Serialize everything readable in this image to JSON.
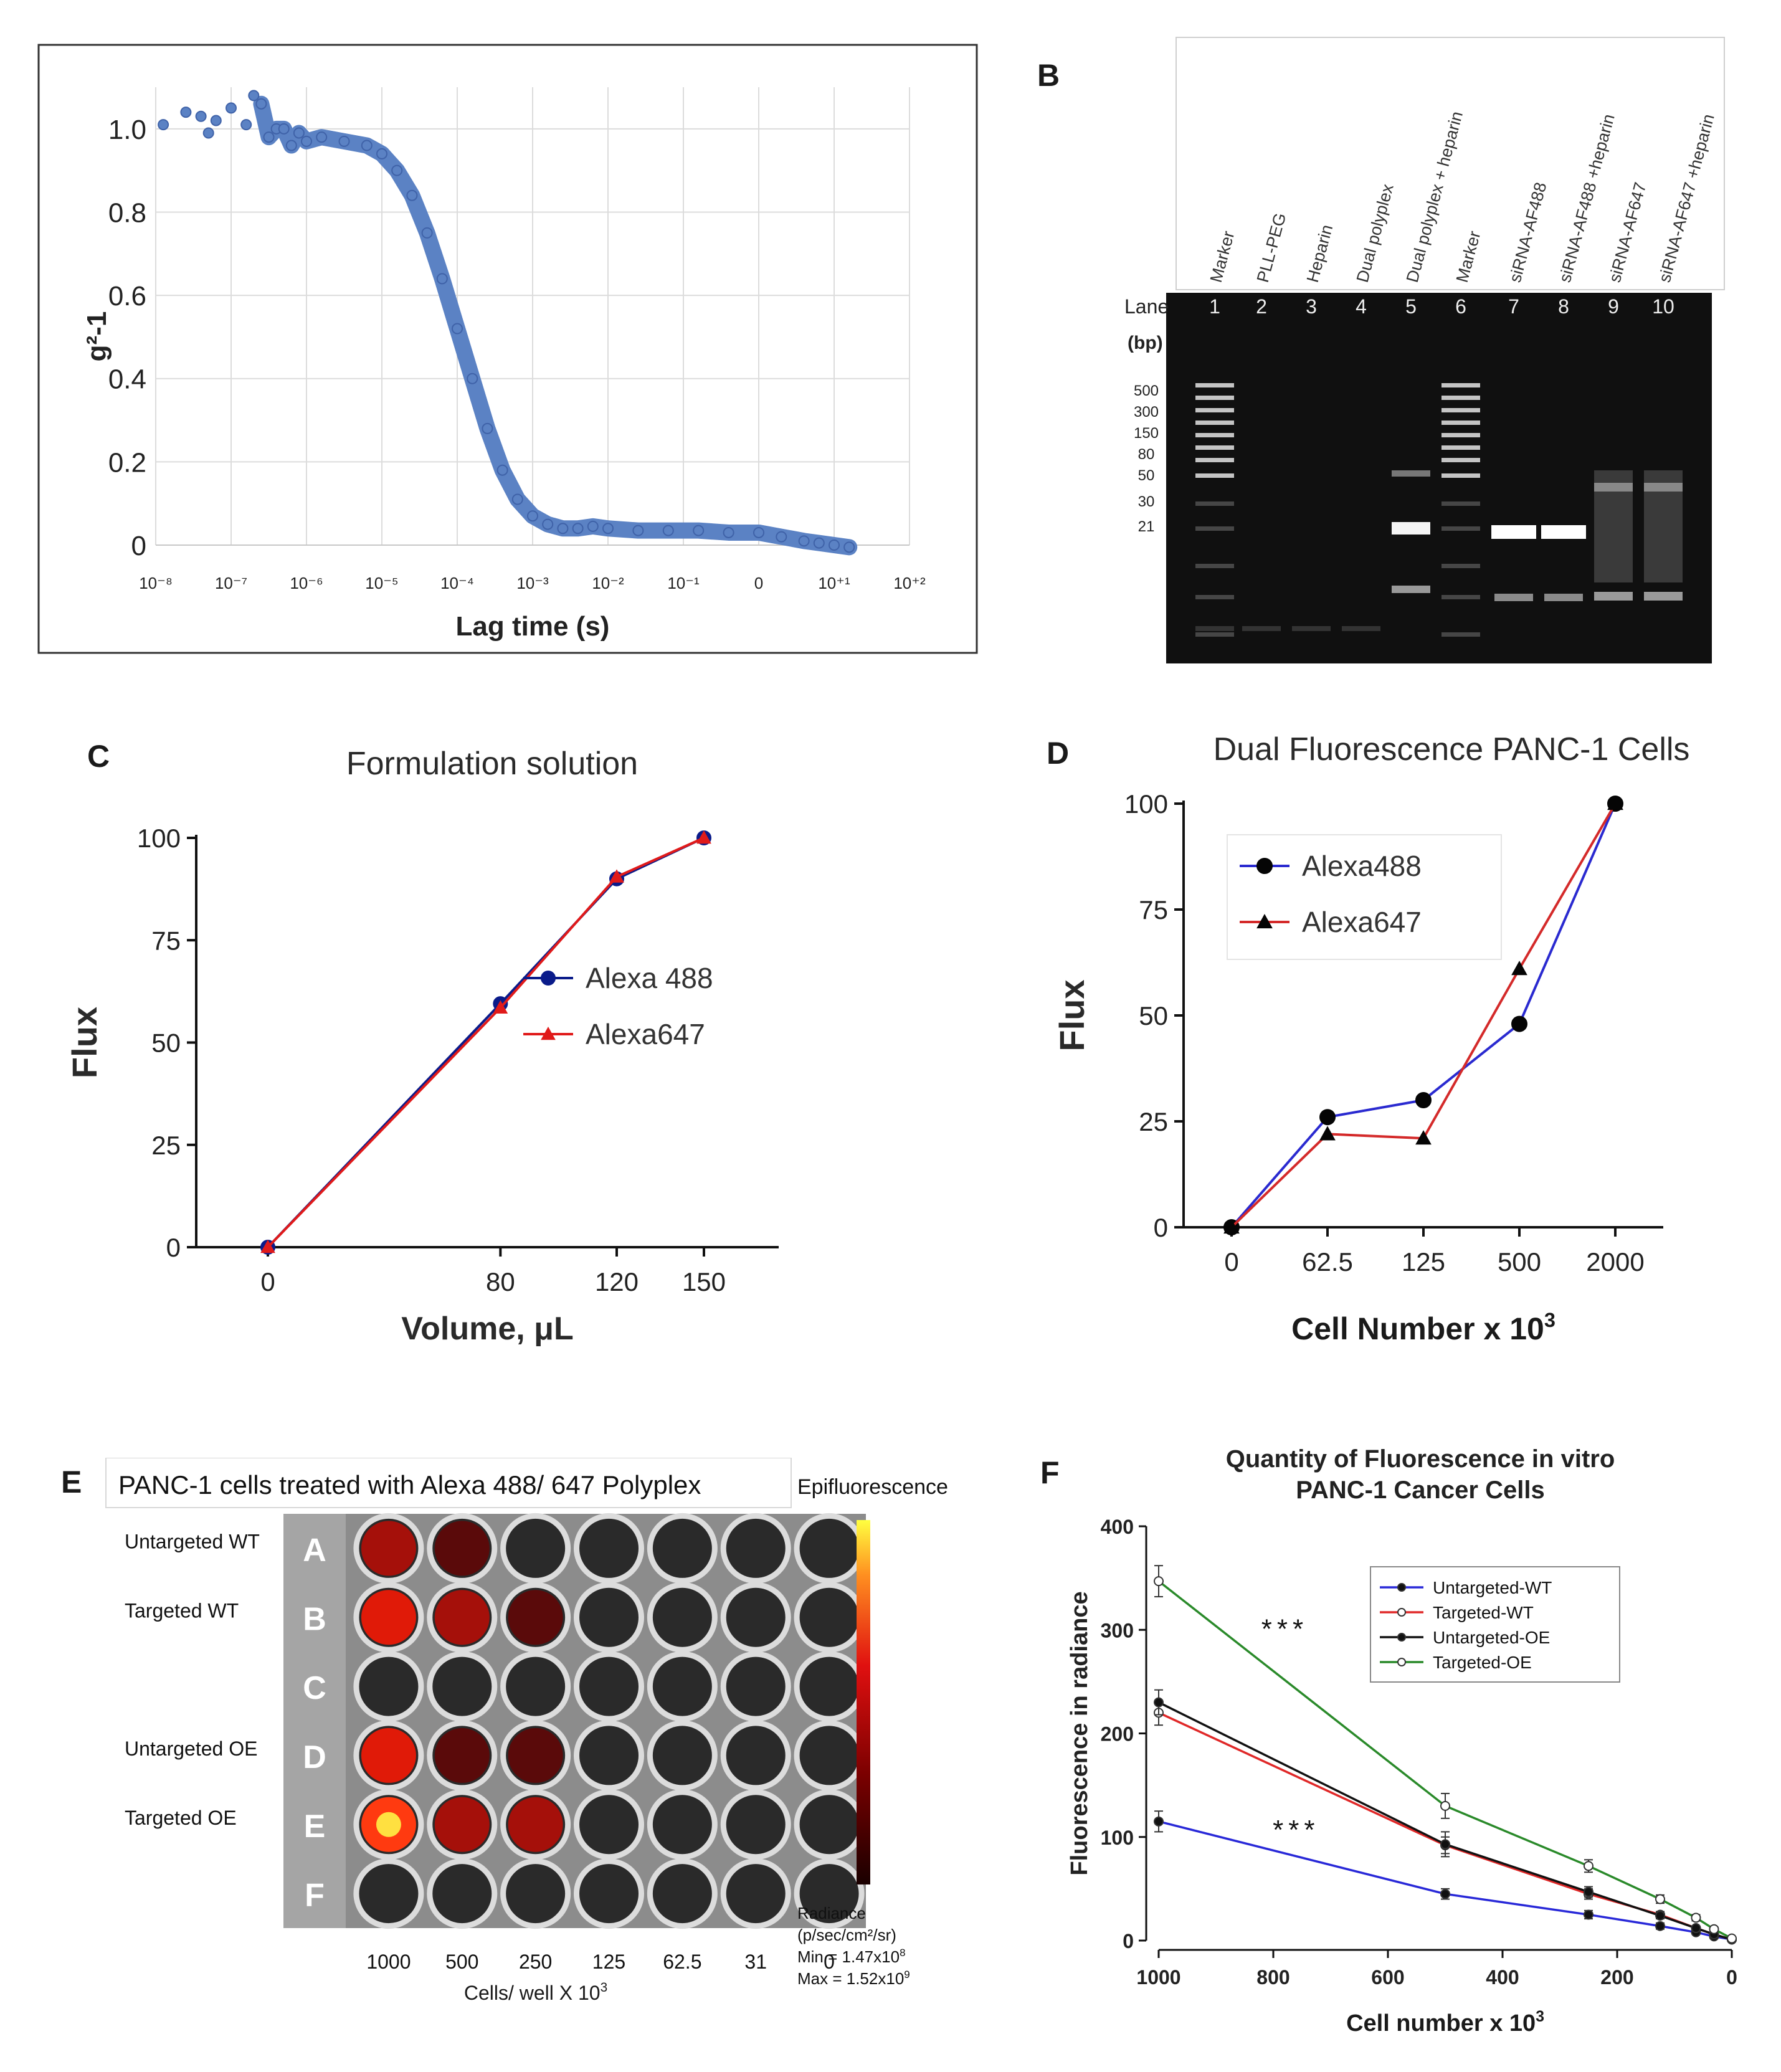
{
  "panels": {
    "A": {
      "letter": "A"
    },
    "B": {
      "letter": "B"
    },
    "C": {
      "letter": "C"
    },
    "D": {
      "letter": "D"
    },
    "E": {
      "letter": "E"
    },
    "F": {
      "letter": "F"
    }
  },
  "chart_data": [
    {
      "id": "A",
      "type": "scatter",
      "title": "",
      "xlabel": "Lag time (s)",
      "ylabel": "g²-1",
      "xscale": "log",
      "xlim_log10": [
        -8,
        2
      ],
      "ylim": [
        0,
        1.1
      ],
      "x_tick_labels": [
        "10⁻⁸",
        "10⁻⁷",
        "10⁻⁶",
        "10⁻⁵",
        "10⁻⁴",
        "10⁻³",
        "10⁻²",
        "10⁻¹",
        "0",
        "10⁺¹",
        "10⁺²"
      ],
      "y_ticks": [
        0,
        0.2,
        0.4,
        0.6,
        0.8,
        1.0
      ],
      "y_tick_labels": [
        "0",
        "0.2",
        "0.4",
        "0.6",
        "0.8",
        "1.0"
      ],
      "series": [
        {
          "name": "correlation",
          "color": "#5b82c4",
          "x_log10": [
            -7.9,
            -7.6,
            -7.4,
            -7.3,
            -7.2,
            -7.0,
            -6.8,
            -6.7,
            -6.6,
            -6.5,
            -6.4,
            -6.3,
            -6.2,
            -6.1,
            -6.0,
            -5.8,
            -5.5,
            -5.2,
            -5.0,
            -4.8,
            -4.6,
            -4.4,
            -4.2,
            -4.0,
            -3.8,
            -3.6,
            -3.4,
            -3.2,
            -3.0,
            -2.8,
            -2.6,
            -2.4,
            -2.2,
            -2.0,
            -1.6,
            -1.2,
            -0.8,
            -0.4,
            0.0,
            0.3,
            0.6,
            0.8,
            1.0,
            1.2
          ],
          "y": [
            1.01,
            1.04,
            1.03,
            0.99,
            1.02,
            1.05,
            1.01,
            1.08,
            1.06,
            0.98,
            1.0,
            1.0,
            0.96,
            0.99,
            0.97,
            0.98,
            0.97,
            0.96,
            0.94,
            0.9,
            0.84,
            0.75,
            0.64,
            0.52,
            0.4,
            0.28,
            0.18,
            0.11,
            0.07,
            0.05,
            0.04,
            0.04,
            0.045,
            0.04,
            0.035,
            0.035,
            0.035,
            0.03,
            0.03,
            0.02,
            0.01,
            0.005,
            0.0,
            -0.005
          ]
        }
      ]
    },
    {
      "id": "C",
      "type": "line",
      "title": "Formulation solution",
      "xlabel": "Volume, μL",
      "ylabel": "Flux",
      "categories": [
        "0",
        "80",
        "120",
        "150"
      ],
      "ylim": [
        0,
        100
      ],
      "y_ticks": [
        0,
        25,
        50,
        75,
        100
      ],
      "legend": "center-right",
      "series": [
        {
          "name": "Alexa 488",
          "color": "#0a1b8a",
          "marker": "circle",
          "values": [
            0,
            59.5,
            90,
            100
          ]
        },
        {
          "name": "Alexa647",
          "color": "#e01a1a",
          "marker": "triangle",
          "values": [
            0,
            58.5,
            90.5,
            100
          ]
        }
      ]
    },
    {
      "id": "D",
      "type": "line",
      "title": "Dual Fluorescence PANC-1 Cells",
      "xlabel": "Cell Number x 10",
      "xlabel_sup": "3",
      "ylabel": "Flux",
      "categories": [
        "0",
        "62.5",
        "125",
        "500",
        "2000"
      ],
      "ylim": [
        0,
        100
      ],
      "y_ticks": [
        0,
        25,
        50,
        75,
        100
      ],
      "legend": "top-left",
      "series": [
        {
          "name": "Alexa488",
          "line_color": "#2a2ad0",
          "marker": "circle",
          "values": [
            0,
            26,
            30,
            48,
            100
          ]
        },
        {
          "name": "Alexa647",
          "line_color": "#d42a2a",
          "marker": "triangle",
          "values": [
            0,
            22,
            21,
            61,
            100
          ]
        }
      ]
    },
    {
      "id": "F",
      "type": "line",
      "title": "Quantity of Fluorescence in vitro",
      "subtitle": "PANC-1 Cancer Cells",
      "xlabel": "Cell number x 10",
      "xlabel_sup": "3",
      "ylabel": "Fluorescence in radiance",
      "xlim": [
        1000,
        0
      ],
      "ylim": [
        0,
        400
      ],
      "x_ticks": [
        1000,
        800,
        600,
        400,
        200,
        0
      ],
      "y_ticks": [
        0,
        100,
        200,
        300,
        400
      ],
      "legend": "top-right",
      "annotations": [
        {
          "text": "***",
          "x": 780,
          "y": 292
        },
        {
          "text": "***",
          "x": 760,
          "y": 98
        }
      ],
      "x": [
        1000,
        500,
        250,
        125,
        62.5,
        31,
        0
      ],
      "series": [
        {
          "name": "Untargeted-WT",
          "color": "#2828d8",
          "marker": "filled",
          "values": [
            115,
            45,
            25,
            14,
            8,
            4,
            1
          ],
          "errors": [
            10,
            5,
            4,
            3,
            2,
            2,
            1
          ]
        },
        {
          "name": "Targeted-WT",
          "color": "#e02828",
          "marker": "open",
          "values": [
            220,
            92,
            45,
            25,
            12,
            6,
            1
          ],
          "errors": [
            12,
            8,
            5,
            3,
            2,
            2,
            1
          ]
        },
        {
          "name": "Untargeted-OE",
          "color": "#111111",
          "marker": "filled",
          "values": [
            230,
            93,
            47,
            24,
            12,
            6,
            1
          ],
          "errors": [
            12,
            12,
            5,
            3,
            2,
            2,
            1
          ]
        },
        {
          "name": "Targeted-OE",
          "color": "#2a8a2a",
          "marker": "open",
          "values": [
            347,
            130,
            72,
            40,
            22,
            11,
            2
          ],
          "errors": [
            15,
            12,
            6,
            4,
            3,
            2,
            1
          ]
        }
      ]
    }
  ],
  "gel": {
    "lane_title": "Lane",
    "bp_title": "(bp)",
    "lane_labels": [
      "Marker",
      "PLL-PEG",
      "Heparin",
      "Dual polyplex",
      "Dual polyplex + heparin",
      "Marker",
      "siRNA-AF488",
      "siRNA-AF488 +heparin",
      "siRNA-AF647",
      "siRNA-AF647 +heparin"
    ],
    "lane_numbers": [
      "1",
      "2",
      "3",
      "4",
      "5",
      "6",
      "7",
      "8",
      "9",
      "10"
    ],
    "bp_markers": [
      "500",
      "300",
      "150",
      "80",
      "50",
      "30",
      "21"
    ]
  },
  "plate": {
    "title": "PANC-1 cells treated with Alexa 488/ 647 Polyplex",
    "row_letters": [
      "A",
      "B",
      "C",
      "D",
      "E",
      "F"
    ],
    "row_labels": [
      "Untargeted WT",
      "Targeted WT",
      "",
      "Untargeted OE",
      "Targeted OE",
      ""
    ],
    "column_values": [
      "1000",
      "500",
      "250",
      "125",
      "62.5",
      "31",
      "0"
    ],
    "x_caption": "Cells/ well X 10",
    "x_caption_sup": "3",
    "colorbar_title": "Epifluorescence",
    "radiance_label": "Radiance",
    "radiance_units": "(p/sec/cm²/sr)",
    "min_label": "Min = 1.47x10",
    "min_exp": "8",
    "max_label": "Max = 1.52x10",
    "max_exp": "9",
    "intensity": [
      [
        0.55,
        0.12,
        0.0,
        0.0,
        0.0,
        0.0,
        0.0
      ],
      [
        0.9,
        0.55,
        0.05,
        0.0,
        0.0,
        0.0,
        0.0
      ],
      [
        0.0,
        0.0,
        0.0,
        0.0,
        0.0,
        0.0,
        0.0
      ],
      [
        0.85,
        0.4,
        0.08,
        0.0,
        0.0,
        0.0,
        0.0
      ],
      [
        1.0,
        0.6,
        0.45,
        0.0,
        0.0,
        0.0,
        0.0
      ],
      [
        0.0,
        0.0,
        0.0,
        0.0,
        0.0,
        0.0,
        0.0
      ]
    ]
  }
}
